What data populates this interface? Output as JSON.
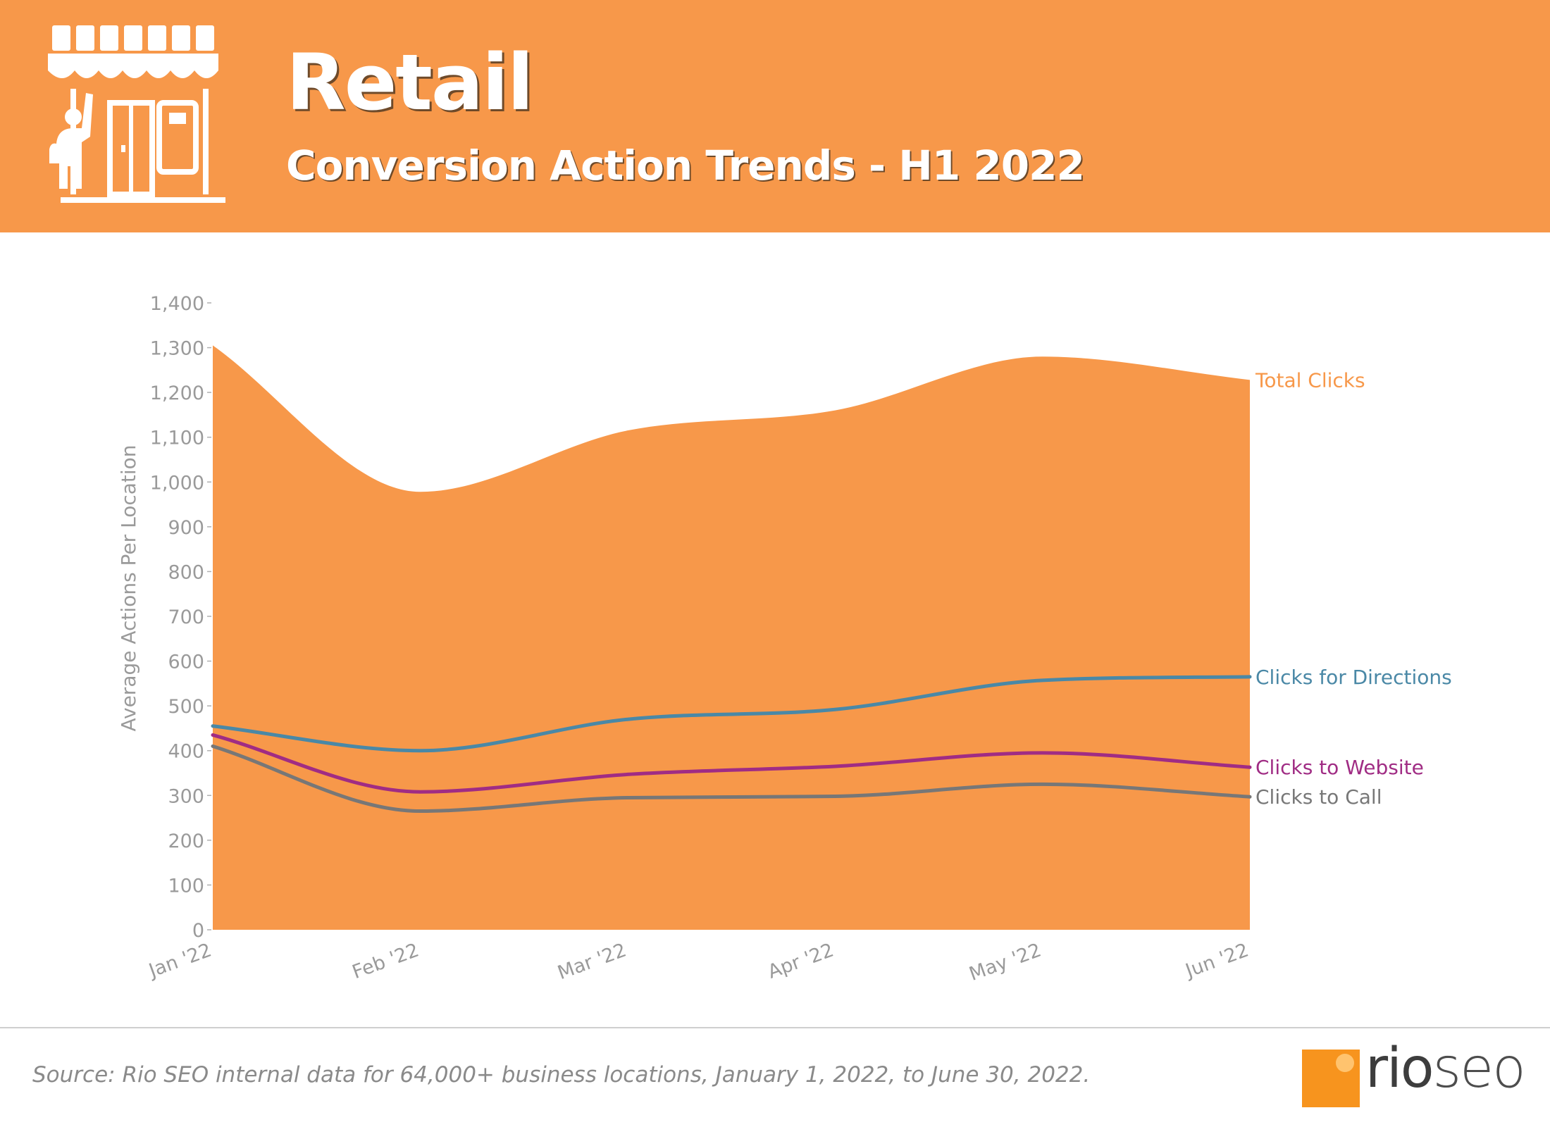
{
  "header": {
    "title": "Retail",
    "subtitle": "Conversion Action Trends - H1 2022",
    "icon": "storefront-icon"
  },
  "chart_data": {
    "type": "area",
    "categories": [
      "Jan '22",
      "Feb '22",
      "Mar '22",
      "Apr '22",
      "May '22",
      "Jun '22"
    ],
    "ylabel": "Average Actions Per Location",
    "ylim": [
      0,
      1400
    ],
    "yticks": [
      0,
      100,
      200,
      300,
      400,
      500,
      600,
      700,
      800,
      900,
      1000,
      1100,
      1200,
      1300,
      1400
    ],
    "ytick_labels": [
      "0",
      "100",
      "200",
      "300",
      "400",
      "500",
      "600",
      "700",
      "800",
      "900",
      "1,000",
      "1,100",
      "1,200",
      "1,300",
      "1,400"
    ],
    "grid": false,
    "legend": "direct-labels-right",
    "series": [
      {
        "name": "Total Clicks",
        "kind": "area",
        "color": "#f7984a",
        "values": [
          1305,
          978,
          1115,
          1160,
          1280,
          1228
        ]
      },
      {
        "name": "Clicks for Directions",
        "kind": "line",
        "color": "#4a88a6",
        "values": [
          455,
          400,
          470,
          492,
          557,
          565
        ]
      },
      {
        "name": "Clicks to Website",
        "kind": "line",
        "color": "#a02c84",
        "values": [
          435,
          308,
          347,
          365,
          395,
          363
        ]
      },
      {
        "name": "Clicks to Call",
        "kind": "line",
        "color": "#777777",
        "values": [
          410,
          265,
          295,
          298,
          325,
          297
        ]
      }
    ]
  },
  "footer": {
    "source": "Source: Rio SEO internal data for 64,000+ business locations, January 1, 2022, to June 30, 2022.",
    "logo_rio": "rio",
    "logo_seo": "seo"
  }
}
